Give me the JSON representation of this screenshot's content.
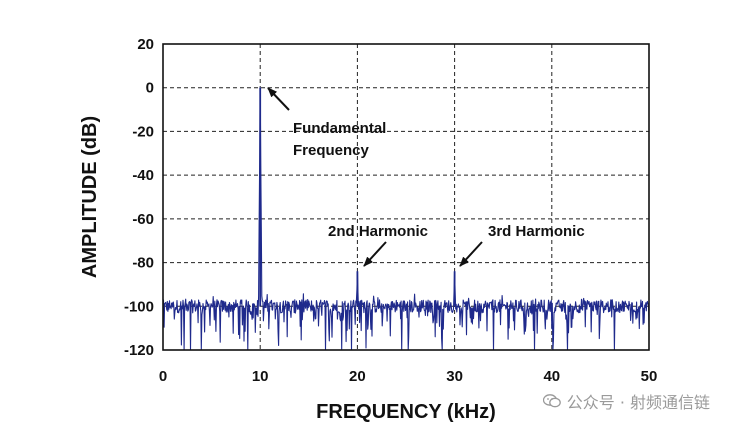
{
  "chart_data": {
    "type": "line",
    "xlabel": "FREQUENCY (kHz)",
    "ylabel": "AMPLITUDE (dB)",
    "xlim": [
      0,
      50
    ],
    "ylim": [
      -120,
      20
    ],
    "xticks": [
      0,
      10,
      20,
      30,
      40,
      50
    ],
    "yticks": [
      20,
      0,
      -20,
      -40,
      -60,
      -80,
      -100,
      -120
    ],
    "grid": true,
    "line_color": "#1f2a8c",
    "noise_floor_db": -100,
    "peaks": [
      {
        "x": 10,
        "y": 0
      },
      {
        "x": 20,
        "y": -84
      },
      {
        "x": 30,
        "y": -84
      }
    ],
    "annotations": [
      {
        "id": "fundamental",
        "lines": [
          "Fundamental",
          "Frequency"
        ],
        "points_to": {
          "x": 10.3,
          "y": 0
        }
      },
      {
        "id": "second",
        "lines": [
          "2nd Harmonic"
        ],
        "points_to": {
          "x": 20.3,
          "y": -83
        }
      },
      {
        "id": "third",
        "lines": [
          "3rd Harmonic"
        ],
        "points_to": {
          "x": 30.3,
          "y": -83
        }
      }
    ]
  },
  "watermark": {
    "text": "公众号 · 射频通信链",
    "icon": "wechat-icon"
  }
}
